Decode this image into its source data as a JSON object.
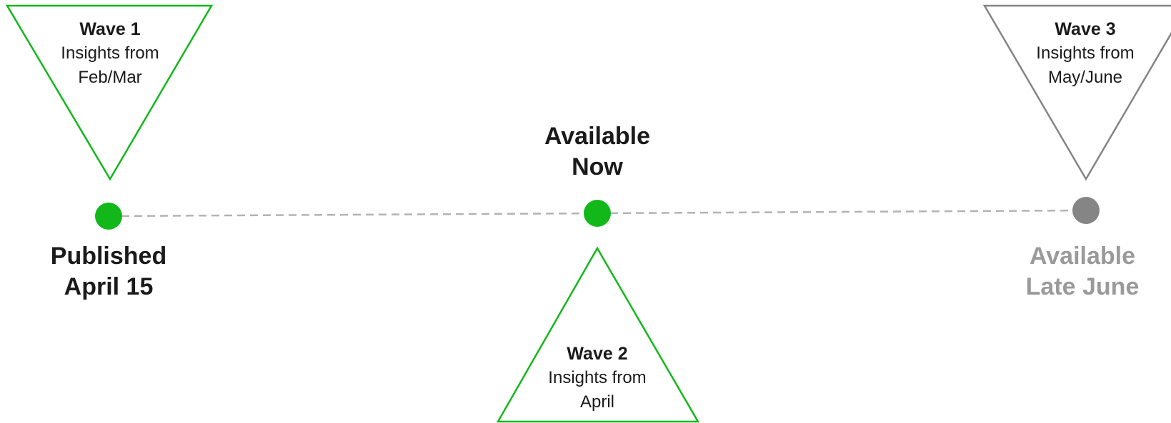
{
  "colors": {
    "active": "#12b81a",
    "pending": "#858585",
    "line": "#b3b3b3",
    "text": "#1a1a1a",
    "pending_text": "#9a9a9a"
  },
  "waves": [
    {
      "title": "Wave 1",
      "line1": "Insights from",
      "line2": "Feb/Mar",
      "state": "active"
    },
    {
      "title": "Wave 2",
      "line1": "Insights from",
      "line2": "April",
      "state": "active"
    },
    {
      "title": "Wave 3",
      "line1": "Insights from",
      "line2": "May/June",
      "state": "pending"
    }
  ],
  "milestones": [
    {
      "line1": "Published",
      "line2": "April 15",
      "state": "active"
    },
    {
      "line1": "Available",
      "line2": "Now",
      "state": "active"
    },
    {
      "line1": "Available",
      "line2": "Late June",
      "state": "pending"
    }
  ]
}
